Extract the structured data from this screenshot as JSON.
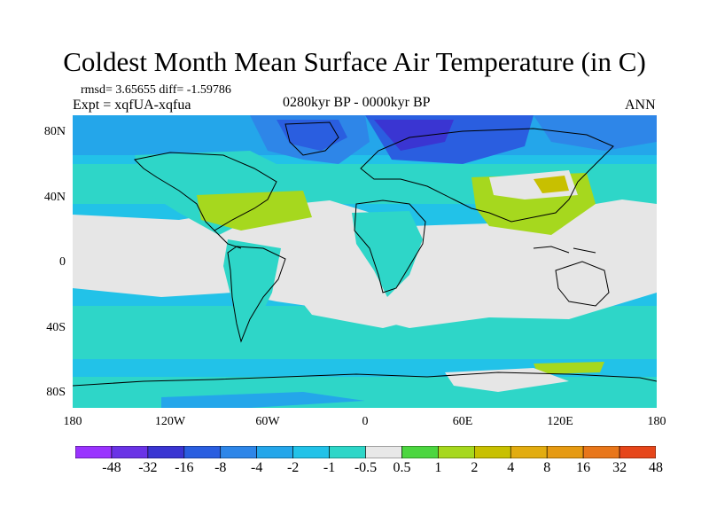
{
  "title": "Coldest Month Mean Surface Air Temperature (in C)",
  "stats_line": "rmsd= 3.65655 diff= -1.59786",
  "experiment_line": "Expt = xqfUA-xqfua",
  "period": "0280kyr BP - 0000kyr BP",
  "season": "ANN",
  "latitude_labels": [
    "80N",
    "40N",
    "0",
    "40S",
    "80S"
  ],
  "longitude_labels": [
    "180",
    "120W",
    "60W",
    "0",
    "60E",
    "120E",
    "180"
  ],
  "colorbar": {
    "labels": [
      "-48",
      "-32",
      "-16",
      "-8",
      "-4",
      "-2",
      "-1",
      "-0.5",
      "0.5",
      "1",
      "2",
      "4",
      "8",
      "16",
      "32",
      "48"
    ],
    "colors": [
      "#9a33ff",
      "#6a33e6",
      "#3a35d2",
      "#2a5ee0",
      "#2e86e8",
      "#24a6ea",
      "#22c2e8",
      "#2ed6c8",
      "#e8e8e8",
      "#4cd640",
      "#a6d81e",
      "#c8c000",
      "#e2ac10",
      "#e69a12",
      "#e8761a",
      "#e6461a"
    ]
  },
  "colors": {
    "ocean_neutral": "#e6e6e6",
    "cool_1": "#2ed6c8",
    "cool_2": "#22c2e8",
    "cool_3": "#24a6ea",
    "cool_4": "#2e86e8",
    "cold_1": "#2a5ee0",
    "cold_2": "#3a35d2",
    "warm_1": "#a6d81e",
    "warm_2": "#c8c000",
    "coastline": "#000000"
  }
}
